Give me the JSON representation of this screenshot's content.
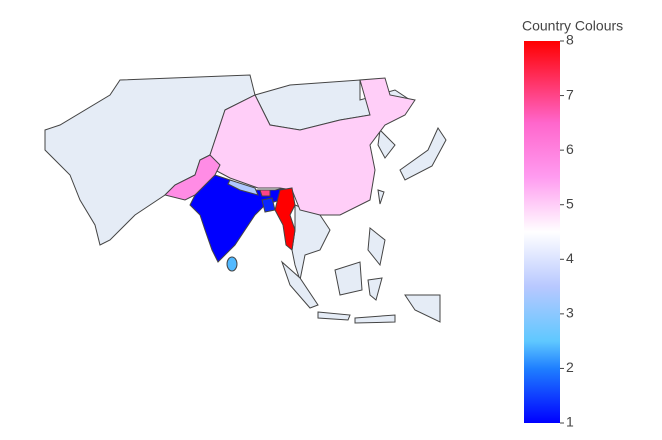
{
  "chart_data": {
    "type": "choropleth",
    "colorbar_title": "Country Colours",
    "values": [
      1,
      1.3,
      2.4,
      3.4,
      5,
      5.8,
      7,
      8
    ],
    "ylim": [
      1,
      8
    ],
    "yticks": [
      1,
      2,
      3,
      4,
      5,
      6,
      7,
      8
    ],
    "colorscale": [
      [
        1,
        "#0000ff"
      ],
      [
        2,
        "#1f7fff"
      ],
      [
        2.5,
        "#5fc8ff"
      ],
      [
        3.5,
        "#b8c8ff"
      ],
      [
        4.5,
        "#ffffff"
      ],
      [
        5.5,
        "#ff9cf0"
      ],
      [
        6.5,
        "#ff66cc"
      ],
      [
        8,
        "#ff0000"
      ]
    ]
  }
}
